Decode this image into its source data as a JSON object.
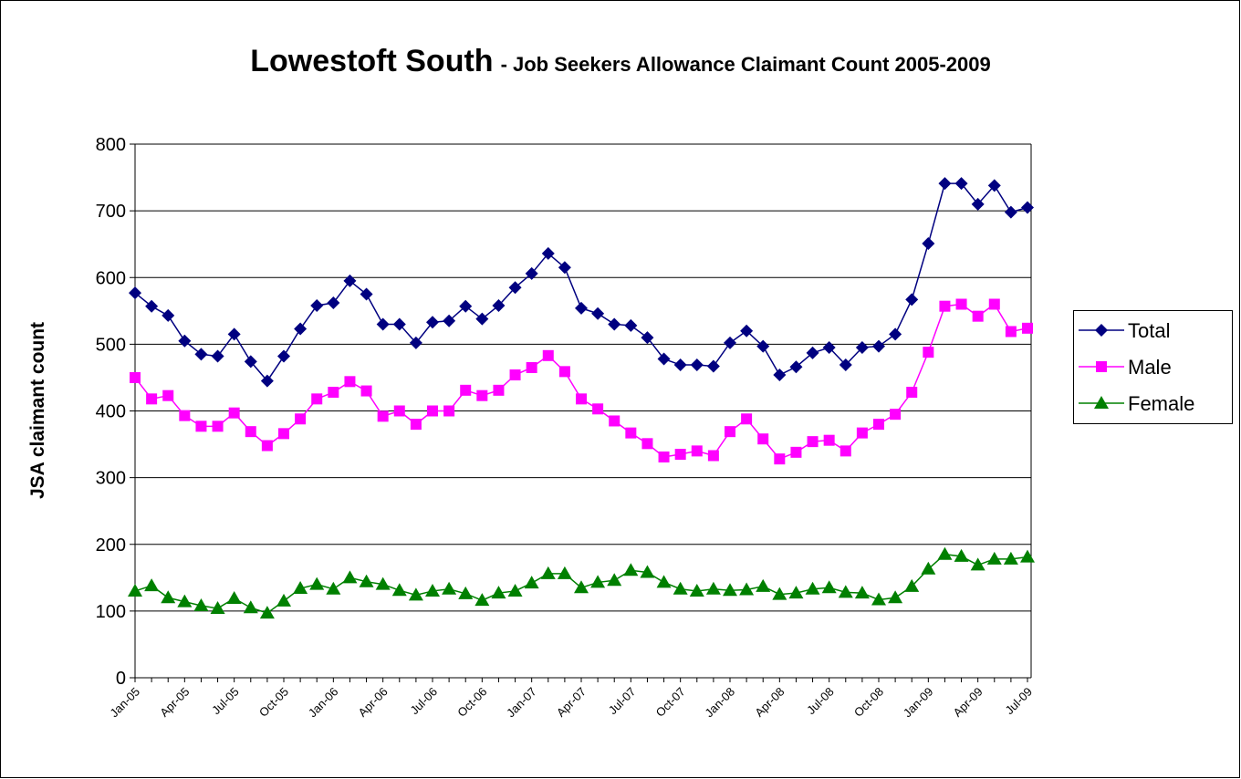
{
  "chart_data": {
    "type": "line",
    "title": "Lowestoft South",
    "subtitle": "- Job Seekers Allowance Claimant Count 2005-2009",
    "y_label": "JSA claimant count",
    "categories": [
      "Jan-05",
      null,
      null,
      "Apr-05",
      null,
      null,
      "Jul-05",
      null,
      null,
      "Oct-05",
      null,
      null,
      "Jan-06",
      null,
      null,
      "Apr-06",
      null,
      null,
      "Jul-06",
      null,
      null,
      "Oct-06",
      null,
      null,
      "Jan-07",
      null,
      null,
      "Apr-07",
      null,
      null,
      "Jul-07",
      null,
      null,
      "Oct-07",
      null,
      null,
      "Jan-08",
      null,
      null,
      "Apr-08",
      null,
      null,
      "Jul-08",
      null,
      null,
      "Oct-08",
      null,
      null,
      "Jan-09",
      null,
      null,
      "Apr-09",
      null,
      null,
      "Jul-09"
    ],
    "series": [
      {
        "name": "Total",
        "color": "#000080",
        "marker": "diamond",
        "values": [
          577,
          557,
          543,
          505,
          485,
          482,
          515,
          474,
          445,
          482,
          523,
          558,
          562,
          595,
          575,
          530,
          530,
          502,
          533,
          535,
          557,
          538,
          558,
          585,
          606,
          636,
          615,
          554,
          546,
          530,
          528,
          510,
          478,
          469,
          469,
          467,
          502,
          520,
          497,
          454,
          466,
          487,
          495,
          469,
          495,
          497,
          515,
          567,
          651,
          741,
          741,
          710,
          738,
          698,
          705
        ]
      },
      {
        "name": "Male",
        "color": "#ff00ff",
        "marker": "square",
        "values": [
          450,
          418,
          423,
          393,
          377,
          377,
          397,
          369,
          348,
          366,
          388,
          418,
          428,
          444,
          430,
          392,
          400,
          380,
          400,
          400,
          431,
          423,
          431,
          454,
          465,
          483,
          459,
          418,
          403,
          385,
          367,
          351,
          331,
          335,
          340,
          333,
          369,
          388,
          358,
          328,
          338,
          354,
          356,
          340,
          367,
          380,
          395,
          428,
          488,
          557,
          560,
          542,
          560,
          519,
          524
        ]
      },
      {
        "name": "Female",
        "color": "#008000",
        "marker": "triangle",
        "values": [
          130,
          138,
          120,
          114,
          108,
          104,
          119,
          105,
          97,
          115,
          134,
          140,
          133,
          150,
          144,
          140,
          131,
          124,
          130,
          133,
          126,
          116,
          127,
          130,
          142,
          156,
          156,
          135,
          143,
          146,
          161,
          158,
          143,
          133,
          130,
          133,
          131,
          132,
          137,
          125,
          127,
          133,
          135,
          128,
          127,
          117,
          120,
          137,
          163,
          185,
          182,
          169,
          178,
          178,
          181
        ]
      }
    ],
    "ylim": [
      0,
      800
    ],
    "yticks": [
      0,
      100,
      200,
      300,
      400,
      500,
      600,
      700,
      800
    ],
    "grid": true,
    "legend": "right"
  }
}
